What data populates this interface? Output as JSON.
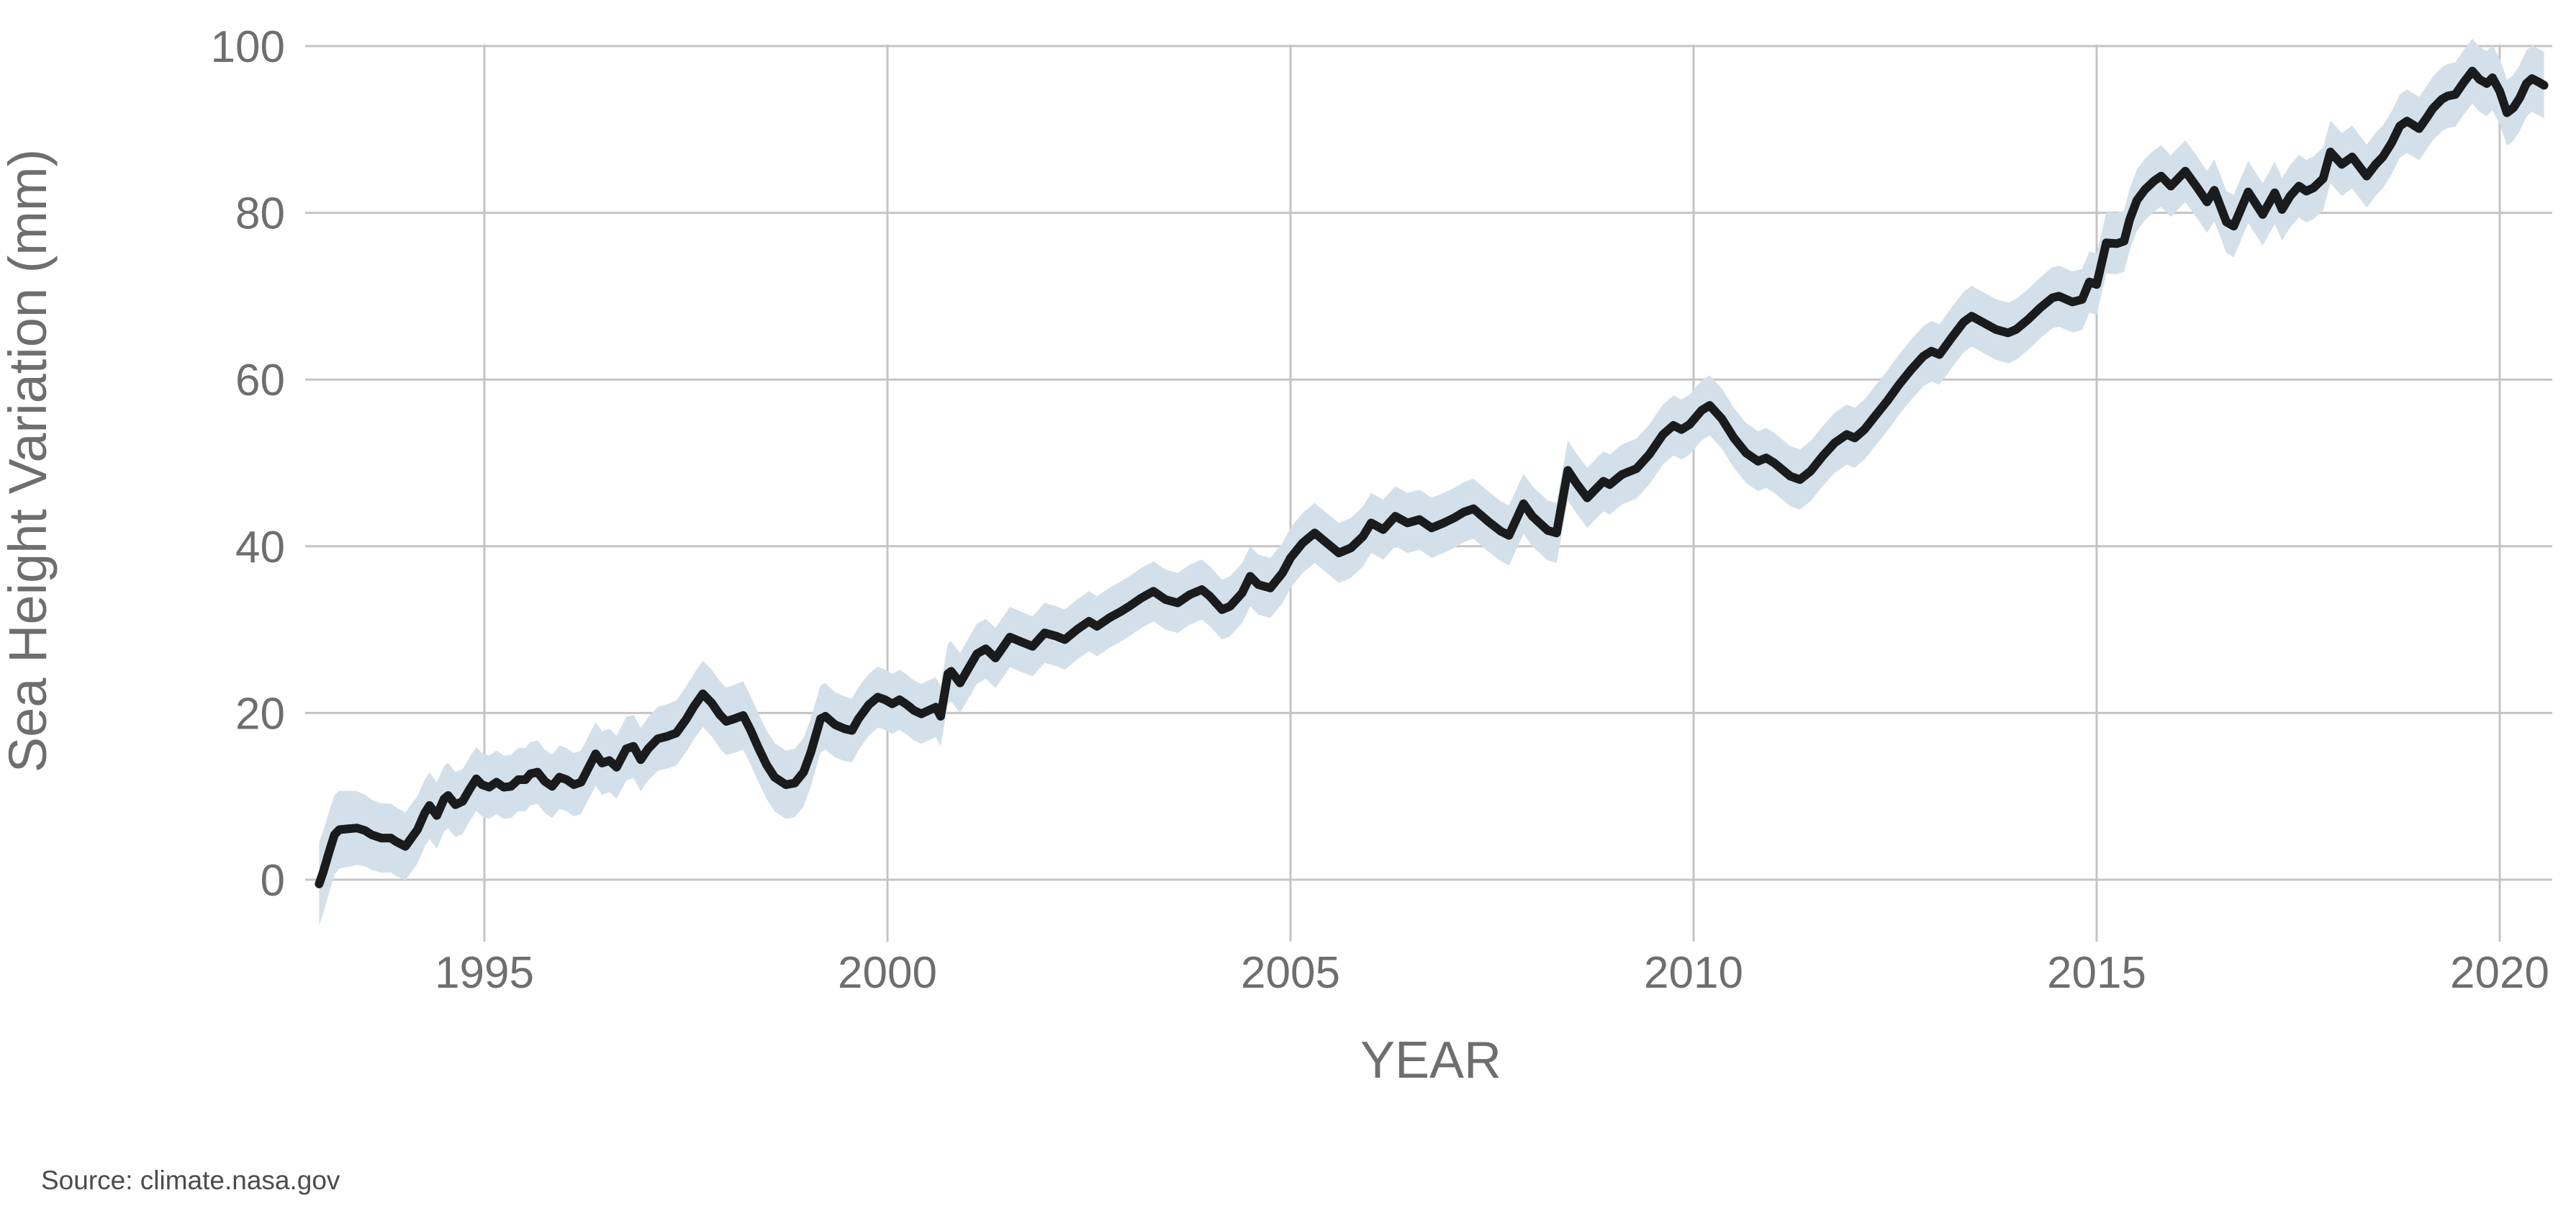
{
  "page": {
    "background_color": "#ffffff"
  },
  "chart_data": {
    "type": "line",
    "title": "",
    "xlabel": "YEAR",
    "ylabel": "Sea Height Variation (mm)",
    "source_note": "Source: climate.nasa.gov",
    "xlim": [
      1992.78,
      2020.65
    ],
    "ylim": [
      -7.4,
      100.8
    ],
    "x_ticks": [
      1995,
      2000,
      2005,
      2010,
      2015,
      2020
    ],
    "y_ticks": [
      0,
      20,
      40,
      60,
      80,
      100
    ],
    "grid": true,
    "legend_position": "none",
    "colors": {
      "line": "#1a1b1d",
      "band": "#d3e0e9",
      "grid": "#c4c4c4",
      "tick_text": "#6e6e6e",
      "axis_title_text": "#6e6e6e",
      "source_text": "#4c4c4c",
      "background": "#ffffff"
    },
    "series": [
      {
        "name": "Sea height variation (mm)",
        "style": "line",
        "color": "#1a1b1d",
        "points": [
          [
            1992.95,
            -0.5
          ],
          [
            1993.0,
            0.9
          ],
          [
            1993.07,
            3.2
          ],
          [
            1993.14,
            5.4
          ],
          [
            1993.2,
            6.0
          ],
          [
            1993.3,
            6.1
          ],
          [
            1993.42,
            6.2
          ],
          [
            1993.52,
            5.9
          ],
          [
            1993.6,
            5.4
          ],
          [
            1993.72,
            5.0
          ],
          [
            1993.84,
            5.0
          ],
          [
            1993.9,
            4.6
          ],
          [
            1994.02,
            4.0
          ],
          [
            1994.17,
            6.0
          ],
          [
            1994.26,
            8.0
          ],
          [
            1994.32,
            8.9
          ],
          [
            1994.41,
            7.7
          ],
          [
            1994.5,
            9.7
          ],
          [
            1994.55,
            10.1
          ],
          [
            1994.64,
            9.0
          ],
          [
            1994.73,
            9.4
          ],
          [
            1994.82,
            10.9
          ],
          [
            1994.9,
            12.1
          ],
          [
            1994.97,
            11.4
          ],
          [
            1995.06,
            11.1
          ],
          [
            1995.15,
            11.7
          ],
          [
            1995.24,
            11.1
          ],
          [
            1995.33,
            11.2
          ],
          [
            1995.42,
            12.0
          ],
          [
            1995.51,
            12.0
          ],
          [
            1995.57,
            12.7
          ],
          [
            1995.66,
            12.9
          ],
          [
            1995.75,
            11.8
          ],
          [
            1995.84,
            11.2
          ],
          [
            1995.93,
            12.3
          ],
          [
            1996.02,
            12.0
          ],
          [
            1996.11,
            11.4
          ],
          [
            1996.2,
            11.7
          ],
          [
            1996.29,
            13.4
          ],
          [
            1996.38,
            15.1
          ],
          [
            1996.46,
            14.0
          ],
          [
            1996.55,
            14.3
          ],
          [
            1996.64,
            13.5
          ],
          [
            1996.76,
            15.7
          ],
          [
            1996.85,
            16.0
          ],
          [
            1996.94,
            14.4
          ],
          [
            1997.03,
            15.7
          ],
          [
            1997.15,
            16.9
          ],
          [
            1997.27,
            17.2
          ],
          [
            1997.38,
            17.6
          ],
          [
            1997.5,
            19.2
          ],
          [
            1997.6,
            20.8
          ],
          [
            1997.71,
            22.3
          ],
          [
            1997.82,
            21.2
          ],
          [
            1997.92,
            19.8
          ],
          [
            1998.0,
            19.0
          ],
          [
            1998.1,
            19.3
          ],
          [
            1998.21,
            19.7
          ],
          [
            1998.3,
            18.0
          ],
          [
            1998.4,
            15.8
          ],
          [
            1998.5,
            13.8
          ],
          [
            1998.6,
            12.3
          ],
          [
            1998.74,
            11.4
          ],
          [
            1998.85,
            11.6
          ],
          [
            1998.96,
            12.9
          ],
          [
            1999.05,
            15.3
          ],
          [
            1999.17,
            19.3
          ],
          [
            1999.23,
            19.6
          ],
          [
            1999.35,
            18.6
          ],
          [
            1999.47,
            18.1
          ],
          [
            1999.56,
            17.9
          ],
          [
            1999.64,
            19.3
          ],
          [
            1999.77,
            21.0
          ],
          [
            1999.88,
            21.9
          ],
          [
            1999.97,
            21.6
          ],
          [
            2000.06,
            21.1
          ],
          [
            2000.15,
            21.6
          ],
          [
            2000.24,
            21.0
          ],
          [
            2000.33,
            20.3
          ],
          [
            2000.42,
            19.9
          ],
          [
            2000.51,
            20.3
          ],
          [
            2000.6,
            20.7
          ],
          [
            2000.66,
            19.6
          ],
          [
            2000.75,
            24.7
          ],
          [
            2000.79,
            25.0
          ],
          [
            2000.9,
            23.6
          ],
          [
            2001.11,
            27.1
          ],
          [
            2001.22,
            27.7
          ],
          [
            2001.34,
            26.6
          ],
          [
            2001.52,
            29.1
          ],
          [
            2001.67,
            28.5
          ],
          [
            2001.8,
            28.0
          ],
          [
            2001.95,
            29.6
          ],
          [
            2002.1,
            29.2
          ],
          [
            2002.2,
            28.8
          ],
          [
            2002.35,
            30.0
          ],
          [
            2002.5,
            31.0
          ],
          [
            2002.6,
            30.4
          ],
          [
            2002.75,
            31.4
          ],
          [
            2002.9,
            32.2
          ],
          [
            2003.0,
            32.8
          ],
          [
            2003.15,
            33.8
          ],
          [
            2003.3,
            34.6
          ],
          [
            2003.45,
            33.6
          ],
          [
            2003.6,
            33.2
          ],
          [
            2003.75,
            34.2
          ],
          [
            2003.9,
            34.8
          ],
          [
            2004.0,
            34.0
          ],
          [
            2004.15,
            32.4
          ],
          [
            2004.25,
            32.8
          ],
          [
            2004.4,
            34.4
          ],
          [
            2004.5,
            36.4
          ],
          [
            2004.6,
            35.4
          ],
          [
            2004.75,
            35.0
          ],
          [
            2004.9,
            36.8
          ],
          [
            2005.0,
            38.6
          ],
          [
            2005.15,
            40.4
          ],
          [
            2005.3,
            41.6
          ],
          [
            2005.45,
            40.4
          ],
          [
            2005.6,
            39.2
          ],
          [
            2005.75,
            39.8
          ],
          [
            2005.9,
            41.2
          ],
          [
            2006.0,
            42.8
          ],
          [
            2006.15,
            42.0
          ],
          [
            2006.3,
            43.6
          ],
          [
            2006.45,
            42.8
          ],
          [
            2006.6,
            43.2
          ],
          [
            2006.75,
            42.2
          ],
          [
            2006.9,
            42.8
          ],
          [
            2007.03,
            43.4
          ],
          [
            2007.15,
            44.1
          ],
          [
            2007.27,
            44.5
          ],
          [
            2007.45,
            43.0
          ],
          [
            2007.61,
            41.8
          ],
          [
            2007.71,
            41.3
          ],
          [
            2007.89,
            45.1
          ],
          [
            2008.0,
            43.6
          ],
          [
            2008.19,
            41.9
          ],
          [
            2008.3,
            41.6
          ],
          [
            2008.44,
            49.1
          ],
          [
            2008.55,
            47.5
          ],
          [
            2008.68,
            45.8
          ],
          [
            2008.88,
            47.8
          ],
          [
            2008.96,
            47.4
          ],
          [
            2009.11,
            48.6
          ],
          [
            2009.29,
            49.3
          ],
          [
            2009.45,
            51.0
          ],
          [
            2009.62,
            53.4
          ],
          [
            2009.75,
            54.5
          ],
          [
            2009.85,
            54.0
          ],
          [
            2009.95,
            54.6
          ],
          [
            2010.1,
            56.3
          ],
          [
            2010.2,
            56.9
          ],
          [
            2010.35,
            55.3
          ],
          [
            2010.5,
            53.0
          ],
          [
            2010.65,
            51.2
          ],
          [
            2010.8,
            50.2
          ],
          [
            2010.9,
            50.6
          ],
          [
            2011.0,
            50.0
          ],
          [
            2011.1,
            49.2
          ],
          [
            2011.2,
            48.4
          ],
          [
            2011.32,
            48.0
          ],
          [
            2011.45,
            49.0
          ],
          [
            2011.6,
            50.8
          ],
          [
            2011.75,
            52.4
          ],
          [
            2011.9,
            53.4
          ],
          [
            2012.0,
            53.0
          ],
          [
            2012.12,
            54.0
          ],
          [
            2012.25,
            55.6
          ],
          [
            2012.4,
            57.4
          ],
          [
            2012.55,
            59.4
          ],
          [
            2012.7,
            61.2
          ],
          [
            2012.85,
            62.8
          ],
          [
            2012.95,
            63.4
          ],
          [
            2013.05,
            63.0
          ],
          [
            2013.2,
            65.0
          ],
          [
            2013.35,
            66.9
          ],
          [
            2013.45,
            67.6
          ],
          [
            2013.6,
            66.8
          ],
          [
            2013.75,
            66.0
          ],
          [
            2013.9,
            65.6
          ],
          [
            2014.0,
            66.0
          ],
          [
            2014.15,
            67.2
          ],
          [
            2014.3,
            68.6
          ],
          [
            2014.45,
            69.8
          ],
          [
            2014.53,
            70.0
          ],
          [
            2014.7,
            69.3
          ],
          [
            2014.82,
            69.6
          ],
          [
            2014.91,
            71.7
          ],
          [
            2015.0,
            71.4
          ],
          [
            2015.12,
            76.4
          ],
          [
            2015.25,
            76.3
          ],
          [
            2015.34,
            76.6
          ],
          [
            2015.41,
            79.2
          ],
          [
            2015.5,
            81.5
          ],
          [
            2015.6,
            82.8
          ],
          [
            2015.71,
            83.8
          ],
          [
            2015.8,
            84.4
          ],
          [
            2015.92,
            83.2
          ],
          [
            2016.0,
            84.0
          ],
          [
            2016.1,
            85.0
          ],
          [
            2016.25,
            83.0
          ],
          [
            2016.37,
            81.3
          ],
          [
            2016.46,
            82.7
          ],
          [
            2016.61,
            78.9
          ],
          [
            2016.7,
            78.4
          ],
          [
            2016.88,
            82.5
          ],
          [
            2017.06,
            79.8
          ],
          [
            2017.21,
            82.4
          ],
          [
            2017.3,
            80.4
          ],
          [
            2017.4,
            82.0
          ],
          [
            2017.51,
            83.2
          ],
          [
            2017.6,
            82.6
          ],
          [
            2017.69,
            83.0
          ],
          [
            2017.81,
            84.1
          ],
          [
            2017.9,
            87.3
          ],
          [
            2018.04,
            85.8
          ],
          [
            2018.17,
            86.7
          ],
          [
            2018.35,
            84.4
          ],
          [
            2018.46,
            85.8
          ],
          [
            2018.55,
            86.7
          ],
          [
            2018.66,
            88.4
          ],
          [
            2018.76,
            90.4
          ],
          [
            2018.85,
            91.0
          ],
          [
            2019.0,
            90.1
          ],
          [
            2019.08,
            91.2
          ],
          [
            2019.17,
            92.5
          ],
          [
            2019.28,
            93.6
          ],
          [
            2019.35,
            94.0
          ],
          [
            2019.45,
            94.2
          ],
          [
            2019.55,
            95.6
          ],
          [
            2019.66,
            97.0
          ],
          [
            2019.75,
            96.0
          ],
          [
            2019.84,
            95.5
          ],
          [
            2019.91,
            96.2
          ],
          [
            2020.0,
            94.6
          ],
          [
            2020.09,
            92.0
          ],
          [
            2020.17,
            92.6
          ],
          [
            2020.25,
            93.8
          ],
          [
            2020.33,
            95.5
          ],
          [
            2020.4,
            96.1
          ],
          [
            2020.48,
            95.7
          ],
          [
            2020.55,
            95.3
          ]
        ]
      },
      {
        "name": "Uncertainty band",
        "style": "band",
        "color": "#d3e0e9",
        "halfwidth_mm": [
          [
            1992.95,
            5.0
          ],
          [
            1993.6,
            4.2
          ],
          [
            1995.0,
            3.8
          ],
          [
            1997.0,
            3.8
          ],
          [
            1998.2,
            4.1
          ],
          [
            1999.0,
            4.1
          ],
          [
            2000.0,
            3.6
          ],
          [
            2012.0,
            3.6
          ],
          [
            2016.0,
            3.7
          ],
          [
            2019.0,
            3.8
          ],
          [
            2020.55,
            4.0
          ]
        ]
      }
    ]
  }
}
